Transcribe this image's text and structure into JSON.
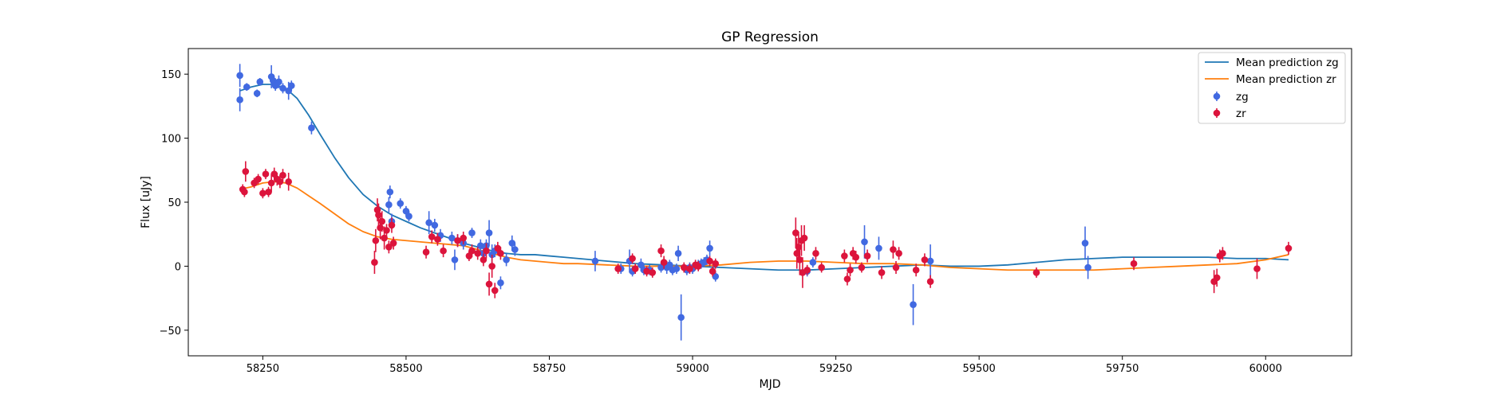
{
  "chart_data": {
    "type": "scatter",
    "title": "GP Regression",
    "xlabel": "MJD",
    "ylabel": "Flux [uJy]",
    "xlim": [
      58120,
      60150
    ],
    "ylim": [
      -70,
      170
    ],
    "xticks": [
      58250,
      58500,
      58750,
      59000,
      59250,
      59500,
      59750,
      60000
    ],
    "yticks": [
      -50,
      0,
      50,
      100,
      150
    ],
    "grid": false,
    "legend_position": "top-right",
    "series": [
      {
        "name": "Mean prediction zg",
        "kind": "line",
        "color": "#1f77b4",
        "x": [
          58210,
          58230,
          58250,
          58270,
          58290,
          58310,
          58330,
          58350,
          58375,
          58400,
          58425,
          58450,
          58475,
          58500,
          58525,
          58550,
          58575,
          58600,
          58625,
          58650,
          58675,
          58700,
          58725,
          58750,
          58775,
          58800,
          58850,
          58900,
          58950,
          59000,
          59050,
          59100,
          59150,
          59200,
          59250,
          59300,
          59350,
          59400,
          59450,
          59500,
          59550,
          59600,
          59650,
          59700,
          59750,
          59800,
          59850,
          59900,
          59950,
          60000,
          60040
        ],
        "y": [
          137,
          140,
          142,
          142,
          139,
          131,
          118,
          103,
          85,
          69,
          56,
          47,
          40,
          35,
          30,
          26,
          22,
          18,
          15,
          12,
          10,
          9,
          9,
          8,
          7,
          6,
          4,
          2,
          1,
          0,
          -1,
          -2,
          -3,
          -3,
          -2,
          -1,
          0,
          1,
          0,
          0,
          1,
          3,
          5,
          6,
          7,
          7,
          7,
          7,
          6,
          6,
          5
        ]
      },
      {
        "name": "Mean prediction zr",
        "kind": "line",
        "color": "#ff7f0e",
        "x": [
          58210,
          58230,
          58250,
          58270,
          58290,
          58310,
          58330,
          58350,
          58375,
          58400,
          58425,
          58450,
          58475,
          58500,
          58525,
          58550,
          58575,
          58600,
          58625,
          58650,
          58675,
          58700,
          58725,
          58750,
          58775,
          58800,
          58850,
          58900,
          58950,
          59000,
          59050,
          59100,
          59150,
          59200,
          59250,
          59300,
          59350,
          59400,
          59450,
          59500,
          59550,
          59600,
          59650,
          59700,
          59750,
          59800,
          59850,
          59900,
          59950,
          60000,
          60040
        ],
        "y": [
          60,
          62,
          65,
          66,
          65,
          61,
          55,
          49,
          41,
          33,
          27,
          23,
          21,
          20,
          19,
          18,
          17,
          16,
          13,
          10,
          7,
          5,
          4,
          3,
          2,
          2,
          1,
          0,
          0,
          0,
          1,
          3,
          4,
          4,
          3,
          2,
          2,
          1,
          -1,
          -2,
          -3,
          -3,
          -3,
          -3,
          -2,
          -1,
          0,
          1,
          2,
          5,
          9
        ]
      },
      {
        "name": "zg",
        "kind": "errorbar",
        "color": "#4169e1",
        "points": [
          [
            58210,
            149,
            9
          ],
          [
            58210,
            130,
            9
          ],
          [
            58222,
            140,
            3
          ],
          [
            58240,
            135,
            3
          ],
          [
            58245,
            144,
            3
          ],
          [
            58265,
            148,
            9
          ],
          [
            58268,
            145,
            5
          ],
          [
            58272,
            141,
            4
          ],
          [
            58278,
            144,
            5
          ],
          [
            58285,
            139,
            4
          ],
          [
            58295,
            137,
            7
          ],
          [
            58300,
            141,
            4
          ],
          [
            58335,
            108,
            5
          ],
          [
            58470,
            48,
            6
          ],
          [
            58472,
            58,
            5
          ],
          [
            58475,
            35,
            6
          ],
          [
            58490,
            49,
            4
          ],
          [
            58500,
            43,
            4
          ],
          [
            58505,
            39,
            4
          ],
          [
            58540,
            34,
            9
          ],
          [
            58550,
            32,
            5
          ],
          [
            58560,
            24,
            5
          ],
          [
            58580,
            22,
            5
          ],
          [
            58585,
            5,
            8
          ],
          [
            58590,
            20,
            5
          ],
          [
            58600,
            18,
            5
          ],
          [
            58615,
            26,
            4
          ],
          [
            58630,
            16,
            5
          ],
          [
            58635,
            10,
            5
          ],
          [
            58640,
            16,
            5
          ],
          [
            58645,
            26,
            10
          ],
          [
            58650,
            9,
            8
          ],
          [
            58655,
            12,
            5
          ],
          [
            58665,
            -13,
            5
          ],
          [
            58675,
            5,
            5
          ],
          [
            58685,
            18,
            6
          ],
          [
            58690,
            13,
            5
          ],
          [
            58830,
            4,
            8
          ],
          [
            58875,
            -2,
            4
          ],
          [
            58890,
            4,
            9
          ],
          [
            58895,
            -4,
            4
          ],
          [
            58910,
            1,
            5
          ],
          [
            58915,
            -3,
            4
          ],
          [
            58925,
            -3,
            4
          ],
          [
            58945,
            -1,
            4
          ],
          [
            58955,
            -1,
            5
          ],
          [
            58960,
            1,
            4
          ],
          [
            58965,
            -3,
            4
          ],
          [
            58972,
            -2,
            4
          ],
          [
            58975,
            10,
            6
          ],
          [
            58980,
            -40,
            18
          ],
          [
            58990,
            -3,
            4
          ],
          [
            58995,
            -1,
            4
          ],
          [
            59000,
            -2,
            4
          ],
          [
            59010,
            1,
            4
          ],
          [
            59015,
            2,
            4
          ],
          [
            59020,
            3,
            4
          ],
          [
            59025,
            5,
            4
          ],
          [
            59030,
            14,
            6
          ],
          [
            59040,
            -8,
            4
          ],
          [
            59200,
            -4,
            4
          ],
          [
            59210,
            3,
            4
          ],
          [
            59300,
            19,
            13
          ],
          [
            59325,
            14,
            9
          ],
          [
            59385,
            -30,
            16
          ],
          [
            59415,
            4,
            13
          ],
          [
            59685,
            18,
            13
          ],
          [
            59690,
            -1,
            9
          ]
        ]
      },
      {
        "name": "zr",
        "kind": "errorbar",
        "color": "#dc143c",
        "points": [
          [
            58215,
            60,
            4
          ],
          [
            58218,
            58,
            4
          ],
          [
            58220,
            74,
            8
          ],
          [
            58235,
            65,
            4
          ],
          [
            58242,
            68,
            4
          ],
          [
            58250,
            57,
            4
          ],
          [
            58255,
            72,
            4
          ],
          [
            58260,
            58,
            4
          ],
          [
            58265,
            65,
            7
          ],
          [
            58270,
            72,
            5
          ],
          [
            58275,
            68,
            5
          ],
          [
            58280,
            66,
            5
          ],
          [
            58285,
            71,
            5
          ],
          [
            58295,
            66,
            7
          ],
          [
            58445,
            3,
            9
          ],
          [
            58447,
            20,
            9
          ],
          [
            58450,
            44,
            9
          ],
          [
            58452,
            40,
            9
          ],
          [
            58455,
            30,
            9
          ],
          [
            58458,
            35,
            8
          ],
          [
            58462,
            22,
            9
          ],
          [
            58466,
            28,
            5
          ],
          [
            58470,
            15,
            5
          ],
          [
            58475,
            32,
            6
          ],
          [
            58478,
            18,
            5
          ],
          [
            58535,
            11,
            5
          ],
          [
            58545,
            23,
            5
          ],
          [
            58555,
            21,
            5
          ],
          [
            58565,
            12,
            5
          ],
          [
            58590,
            20,
            5
          ],
          [
            58600,
            22,
            5
          ],
          [
            58610,
            8,
            4
          ],
          [
            58615,
            12,
            5
          ],
          [
            58625,
            10,
            5
          ],
          [
            58635,
            5,
            5
          ],
          [
            58640,
            12,
            6
          ],
          [
            58645,
            -14,
            9
          ],
          [
            58650,
            0,
            9
          ],
          [
            58655,
            -19,
            6
          ],
          [
            58660,
            14,
            5
          ],
          [
            58665,
            10,
            5
          ],
          [
            58870,
            -2,
            4
          ],
          [
            58895,
            6,
            4
          ],
          [
            58900,
            -2,
            4
          ],
          [
            58920,
            -4,
            4
          ],
          [
            58930,
            -5,
            4
          ],
          [
            58945,
            12,
            5
          ],
          [
            58950,
            3,
            5
          ],
          [
            58985,
            -1,
            4
          ],
          [
            58995,
            -2,
            4
          ],
          [
            59005,
            1,
            4
          ],
          [
            59010,
            0,
            4
          ],
          [
            59030,
            4,
            4
          ],
          [
            59035,
            -4,
            4
          ],
          [
            59040,
            2,
            4
          ],
          [
            59180,
            26,
            12
          ],
          [
            59182,
            10,
            12
          ],
          [
            59185,
            15,
            12
          ],
          [
            59187,
            5,
            12
          ],
          [
            59190,
            20,
            12
          ],
          [
            59192,
            -5,
            12
          ],
          [
            59195,
            22,
            10
          ],
          [
            59200,
            -3,
            4
          ],
          [
            59215,
            10,
            5
          ],
          [
            59225,
            -1,
            4
          ],
          [
            59265,
            8,
            5
          ],
          [
            59270,
            -10,
            5
          ],
          [
            59275,
            -3,
            5
          ],
          [
            59280,
            10,
            5
          ],
          [
            59285,
            7,
            5
          ],
          [
            59295,
            -1,
            4
          ],
          [
            59305,
            8,
            5
          ],
          [
            59330,
            -5,
            5
          ],
          [
            59350,
            13,
            7
          ],
          [
            59355,
            -1,
            5
          ],
          [
            59360,
            10,
            5
          ],
          [
            59390,
            -3,
            5
          ],
          [
            59405,
            5,
            5
          ],
          [
            59415,
            -12,
            5
          ],
          [
            59600,
            -5,
            4
          ],
          [
            59770,
            2,
            5
          ],
          [
            59910,
            -12,
            9
          ],
          [
            59915,
            -9,
            7
          ],
          [
            59920,
            8,
            5
          ],
          [
            59925,
            10,
            5
          ],
          [
            59985,
            -2,
            8
          ],
          [
            60040,
            14,
            5
          ]
        ]
      }
    ]
  }
}
